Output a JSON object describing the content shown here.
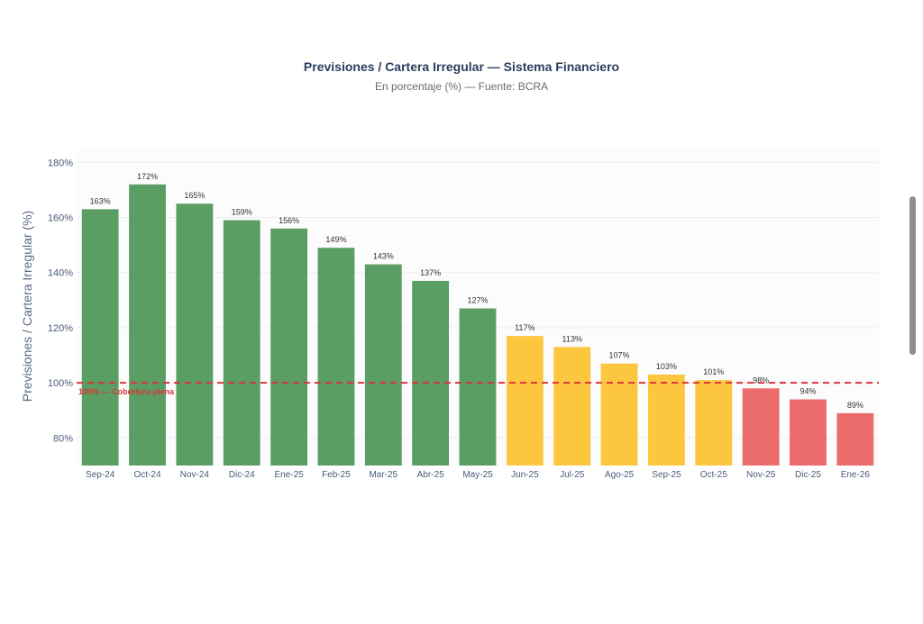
{
  "chart_data": {
    "type": "bar",
    "title": "Previsiones / Cartera Irregular — Sistema Financiero",
    "subtitle": "En porcentaje (%) — Fuente: BCRA",
    "xlabel": "",
    "ylabel": "Previsiones / Cartera Irregular (%)",
    "ylim": [
      70,
      185
    ],
    "yticks": [
      80,
      100,
      120,
      140,
      160,
      180
    ],
    "ytick_labels": [
      "80%",
      "100%",
      "120%",
      "140%",
      "160%",
      "180%"
    ],
    "grid": true,
    "categories": [
      "Sep-24",
      "Oct-24",
      "Nov-24",
      "Dic-24",
      "Ene-25",
      "Feb-25",
      "Mar-25",
      "Abr-25",
      "May-25",
      "Jun-25",
      "Jul-25",
      "Ago-25",
      "Sep-25",
      "Oct-25",
      "Nov-25",
      "Dic-25",
      "Ene-26"
    ],
    "values": [
      163,
      172,
      165,
      159,
      156,
      149,
      143,
      137,
      127,
      117,
      113,
      107,
      103,
      101,
      98,
      94,
      89
    ],
    "value_labels": [
      "163%",
      "172%",
      "165%",
      "159%",
      "156%",
      "149%",
      "143%",
      "137%",
      "127%",
      "117%",
      "113%",
      "107%",
      "103%",
      "101%",
      "98%",
      "94%",
      "89%"
    ],
    "bar_colors": [
      "#5b9e64",
      "#5b9e64",
      "#5b9e64",
      "#5b9e64",
      "#5b9e64",
      "#5b9e64",
      "#5b9e64",
      "#5b9e64",
      "#5b9e64",
      "#fdc63f",
      "#fdc63f",
      "#fdc63f",
      "#fdc63f",
      "#fdc63f",
      "#ec6b6b",
      "#ec6b6b",
      "#ec6b6b"
    ],
    "reference_line": {
      "value": 100,
      "label": "100% — Cobertura plena",
      "color": "#d9343a"
    }
  },
  "colors": {
    "title": "#2a3f5f",
    "axis_text": "#4a5a78",
    "grid": "#eceef2",
    "label": "#333333"
  }
}
